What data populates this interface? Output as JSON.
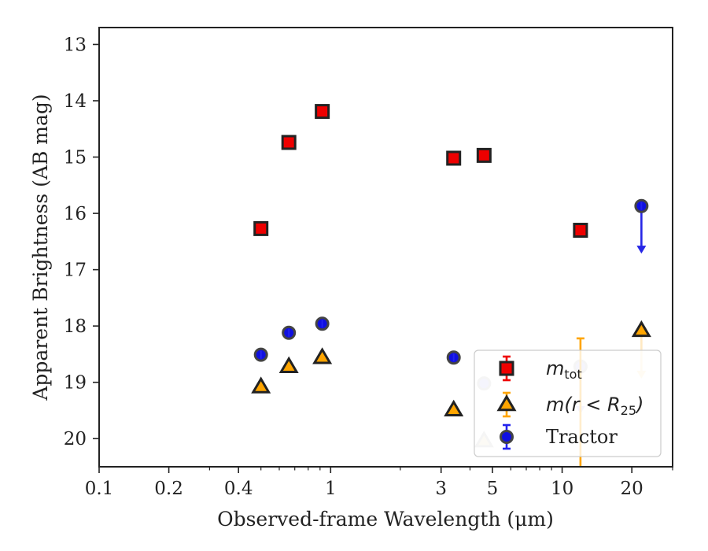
{
  "chart_data": {
    "type": "scatter",
    "title": "",
    "xlabel": "Observed-frame Wavelength (μm)",
    "ylabel": "Apparent Brightness (AB mag)",
    "xscale": "log",
    "xlim": [
      0.1,
      30
    ],
    "ylim": [
      20.5,
      12.7
    ],
    "y_inverted": true,
    "grid": false,
    "xticks": [
      {
        "value": 0.1,
        "label": "0.1"
      },
      {
        "value": 0.2,
        "label": "0.2"
      },
      {
        "value": 0.4,
        "label": "0.4"
      },
      {
        "value": 1,
        "label": "1"
      },
      {
        "value": 3,
        "label": "3"
      },
      {
        "value": 5,
        "label": "5"
      },
      {
        "value": 10,
        "label": "10"
      },
      {
        "value": 20,
        "label": "20"
      }
    ],
    "yticks": [
      {
        "value": 13,
        "label": "13"
      },
      {
        "value": 14,
        "label": "14"
      },
      {
        "value": 15,
        "label": "15"
      },
      {
        "value": 16,
        "label": "16"
      },
      {
        "value": 17,
        "label": "17"
      },
      {
        "value": 18,
        "label": "18"
      },
      {
        "value": 19,
        "label": "19"
      },
      {
        "value": 20,
        "label": "20"
      }
    ],
    "legend": {
      "position": "lower-right"
    },
    "series": [
      {
        "name": "m_tot",
        "legend_main": "m",
        "legend_sub": "tot",
        "marker": "square",
        "color": "#ee0000",
        "edge": "#222222",
        "errcolor": "#ee0000",
        "points": [
          {
            "x": 0.5,
            "y": 16.27
          },
          {
            "x": 0.66,
            "y": 14.74
          },
          {
            "x": 0.92,
            "y": 14.19
          },
          {
            "x": 3.4,
            "y": 15.02
          },
          {
            "x": 4.6,
            "y": 14.97
          },
          {
            "x": 12.0,
            "y": 16.3
          }
        ]
      },
      {
        "name": "m(r < R25)",
        "legend_main": "m(r < R",
        "legend_sub": "25",
        "legend_close": ")",
        "marker": "triangle",
        "color": "#ffa500",
        "edge": "#222222",
        "errcolor": "#ffa500",
        "points": [
          {
            "x": 0.5,
            "y": 19.08
          },
          {
            "x": 0.66,
            "y": 18.72
          },
          {
            "x": 0.92,
            "y": 18.56
          },
          {
            "x": 3.4,
            "y": 19.49
          },
          {
            "x": 4.6,
            "y": 20.04,
            "faded": true
          },
          {
            "x": 12.0,
            "y": 18.22,
            "errbar": [
              18.22,
              20.5
            ],
            "noMarker": true
          },
          {
            "x": 22.0,
            "y": 18.08,
            "upperLimit": true,
            "arrowTo": 18.92
          }
        ]
      },
      {
        "name": "Tractor",
        "legend_main": "Tractor",
        "marker": "circle",
        "color": "#1010e0",
        "edge": "#444444",
        "errcolor": "#2222ee",
        "points": [
          {
            "x": 0.5,
            "y": 18.51
          },
          {
            "x": 0.66,
            "y": 18.12
          },
          {
            "x": 0.92,
            "y": 17.96
          },
          {
            "x": 3.4,
            "y": 18.56
          },
          {
            "x": 4.6,
            "y": 19.02,
            "faded": true
          },
          {
            "x": 12.0,
            "y": 18.72,
            "upperLimit": true,
            "arrowTo": 19.55,
            "faded": true
          },
          {
            "x": 22.0,
            "y": 15.87,
            "upperLimit": true,
            "arrowTo": 16.7
          }
        ]
      }
    ]
  }
}
